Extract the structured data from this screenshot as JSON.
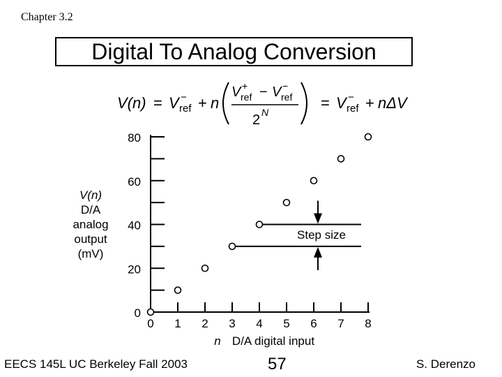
{
  "chapter_label": "Chapter 3.2",
  "slide_title": "Digital To Analog Conversion",
  "formula": {
    "v_n": "V(n)",
    "equals": "=",
    "vref": "V",
    "ref_sub": "ref",
    "minus_sup": "−",
    "plus_sup": "+",
    "plus": "+",
    "minus": "−",
    "n": "n",
    "two": "2",
    "N": "N",
    "n_delta_v": "nΔV"
  },
  "chart_data": {
    "type": "scatter",
    "x": [
      0,
      1,
      2,
      3,
      4,
      5,
      6,
      7,
      8
    ],
    "y": [
      0,
      10,
      20,
      30,
      40,
      50,
      60,
      70,
      80
    ],
    "xlim": [
      0,
      8
    ],
    "ylim": [
      0,
      80
    ],
    "x_ticks": [
      "0",
      "1",
      "2",
      "3",
      "4",
      "5",
      "6",
      "7",
      "8"
    ],
    "y_ticks": [
      "0",
      "20",
      "40",
      "60",
      "80"
    ],
    "xlabel_var": "n",
    "xlabel": "D/A digital input",
    "ylabel_lines": [
      "V(n)",
      "D/A",
      "analog",
      "output",
      "(mV)"
    ],
    "annotation": "Step size",
    "grid": false
  },
  "footer": {
    "left": "EECS 145L UC Berkeley Fall 2003",
    "page": "57",
    "right": "S. Derenzo"
  }
}
